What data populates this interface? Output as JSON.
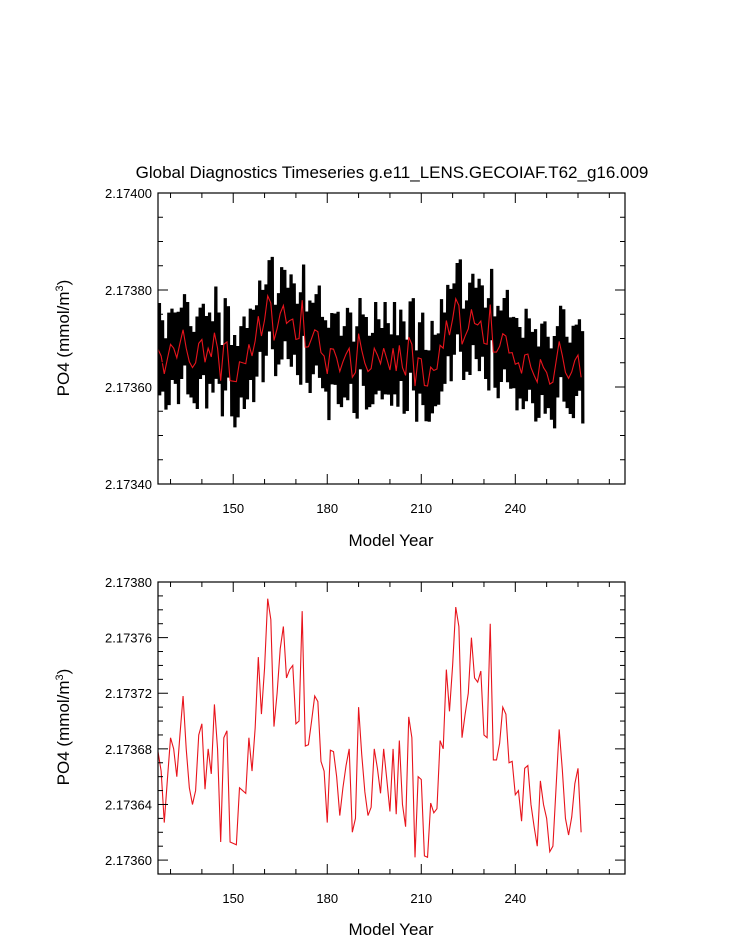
{
  "chart_data": [
    {
      "type": "line",
      "title": "Global Diagnostics Timeseries g.e11_LENS.GECOIAF.T62_g16.009",
      "xlabel": "Model Year",
      "ylabel_main": "PO4 (mmol/m",
      "ylabel_sup": "3",
      "ylabel_close": ")",
      "xlim": [
        126,
        275
      ],
      "ylim": [
        2.1734,
        2.174
      ],
      "x_ticks": [
        150,
        180,
        210,
        240
      ],
      "y_ticks": [
        2.1734,
        2.1736,
        2.1738,
        2.174
      ],
      "y_tick_labels": [
        "2.17340",
        "2.17360",
        "2.17380",
        "2.17400"
      ],
      "series": [
        {
          "name": "",
          "color": "#000000",
          "description_of_values": "monthly",
          "x_start": 126,
          "points_per_year": 12,
          "seasonal_amplitude_high": 0.00011,
          "seasonal_amplitude_low": 8.5e-05
        },
        {
          "name": "",
          "color": "#e8141c",
          "x_start": 126,
          "x_step": 1,
          "values": [
            2.173678,
            2.173664,
            2.173627,
            2.173658,
            2.173688,
            2.17368,
            2.17366,
            2.17369,
            2.173718,
            2.17368,
            2.173652,
            2.17364,
            2.17365,
            2.17369,
            2.173698,
            2.173651,
            2.17368,
            2.173662,
            2.173712,
            2.17368,
            2.173613,
            2.173688,
            2.173693,
            2.173613,
            2.173612,
            2.173611,
            2.173652,
            2.17365,
            2.173648,
            2.173688,
            2.173664,
            2.173695,
            2.173746,
            2.173705,
            2.173738,
            2.173788,
            2.173773,
            2.173696,
            2.17372,
            2.173752,
            2.173768,
            2.173731,
            2.173737,
            2.17374,
            2.173698,
            2.1737,
            2.173779,
            2.173682,
            2.173683,
            2.1737,
            2.173718,
            2.173714,
            2.173671,
            2.173664,
            2.173627,
            2.173679,
            2.173678,
            2.17366,
            2.173632,
            2.173652,
            2.173668,
            2.17368,
            2.17362,
            2.17363,
            2.17371,
            2.173676,
            2.173649,
            2.173632,
            2.173638,
            2.17368,
            2.173666,
            2.173648,
            2.17368,
            2.173658,
            2.173635,
            2.17368,
            2.173633,
            2.173686,
            2.17364,
            2.173624,
            2.173703,
            2.173688,
            2.173602,
            2.17366,
            2.173658,
            2.173603,
            2.173602,
            2.173641,
            2.173634,
            2.173637,
            2.173686,
            2.17368,
            2.173737,
            2.173707,
            2.17374,
            2.173782,
            2.173768,
            2.173688,
            2.173705,
            2.17372,
            2.17376,
            2.173731,
            2.173728,
            2.173736,
            2.17369,
            2.173688,
            2.17377,
            2.173672,
            2.173672,
            2.173684,
            2.17371,
            2.173705,
            2.17367,
            2.173671,
            2.173647,
            2.17365,
            2.173628,
            2.173666,
            2.173668,
            2.17364,
            2.173624,
            2.17361,
            2.173657,
            2.17364,
            2.17363,
            2.173606,
            2.17361,
            2.173652,
            2.173694,
            2.173665,
            2.17363,
            2.173618,
            2.173631,
            2.173655,
            2.173666,
            2.17362
          ]
        }
      ]
    },
    {
      "type": "line",
      "title": "",
      "xlabel": "Model Year",
      "ylabel_main": "PO4 (mmol/m",
      "ylabel_sup": "3",
      "ylabel_close": ")",
      "xlim": [
        126,
        275
      ],
      "ylim": [
        2.17359,
        2.1738
      ],
      "x_ticks": [
        150,
        180,
        210,
        240
      ],
      "y_ticks": [
        2.1736,
        2.17364,
        2.17368,
        2.17372,
        2.17376,
        2.1738
      ],
      "y_tick_labels": [
        "2.17360",
        "2.17364",
        "2.17368",
        "2.17372",
        "2.17376",
        "2.17380"
      ],
      "series_ref": 1,
      "color": "#e8141c"
    }
  ]
}
